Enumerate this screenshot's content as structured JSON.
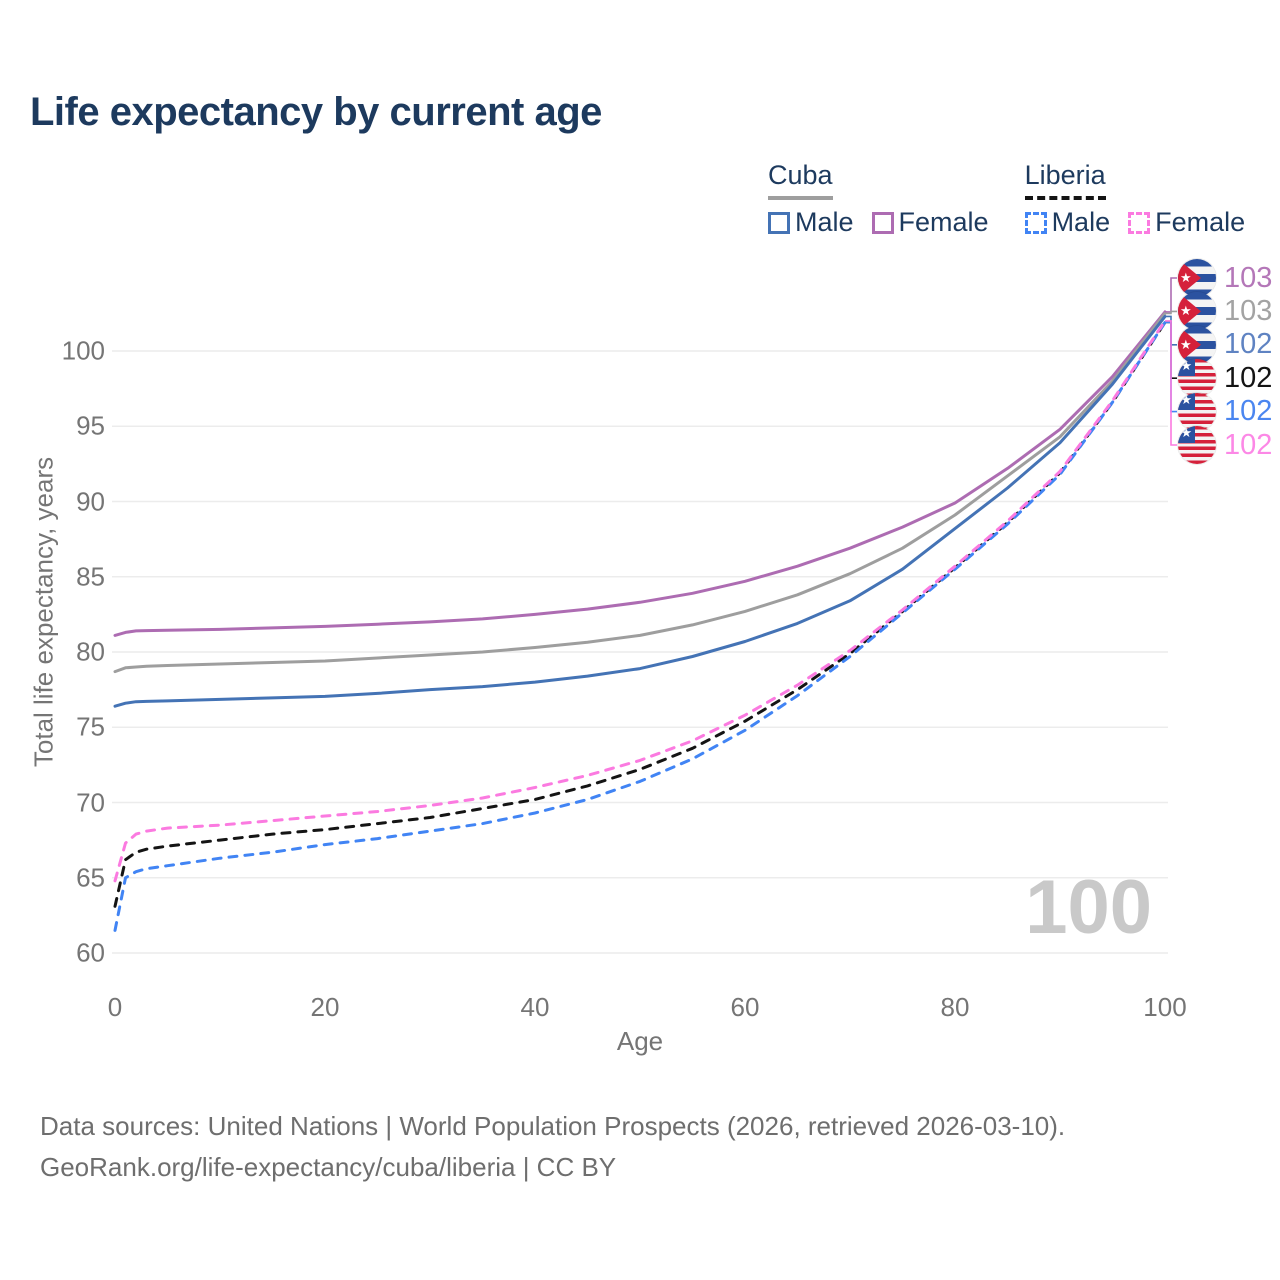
{
  "page": {
    "title": "Life expectancy by current age",
    "watermark": "100",
    "footer_line1": "Data sources: United Nations | World Population Prospects (2026, retrieved 2026-03-10).",
    "footer_line2": "GeoRank.org/life-expectancy/cuba/liberia | CC BY"
  },
  "legend": {
    "groups": [
      {
        "title": "Cuba",
        "line_style": "solid",
        "items": [
          {
            "label": "Male",
            "color": "#4473b5"
          },
          {
            "label": "Female",
            "color": "#ad6cb2"
          }
        ]
      },
      {
        "title": "Liberia",
        "line_style": "dashed",
        "items": [
          {
            "label": "Male",
            "color": "#4184f4"
          },
          {
            "label": "Female",
            "color": "#fb7ae0"
          }
        ]
      }
    ]
  },
  "chart_data": {
    "type": "line",
    "title": "Life expectancy by current age",
    "xlabel": "Age",
    "ylabel": "Total life expectancy, years",
    "xlim": [
      0,
      100
    ],
    "ylim": [
      60,
      100
    ],
    "xticks": [
      0,
      20,
      40,
      60,
      80,
      100
    ],
    "yticks": [
      60,
      65,
      70,
      75,
      80,
      85,
      90,
      95,
      100
    ],
    "grid": "horizontal",
    "legend_position": "top-right",
    "ages": [
      0,
      1,
      2,
      3,
      5,
      10,
      15,
      20,
      25,
      30,
      35,
      40,
      45,
      50,
      55,
      60,
      65,
      70,
      75,
      80,
      85,
      90,
      95,
      100
    ],
    "series": [
      {
        "name": "Cuba Female",
        "country": "Cuba",
        "sex": "Female",
        "line": "solid",
        "color": "#ad6cb2",
        "end_label": "103",
        "label_color": "#b477b8",
        "values": [
          81.1,
          81.3,
          81.4,
          81.42,
          81.45,
          81.5,
          81.6,
          81.7,
          81.85,
          82.0,
          82.2,
          82.5,
          82.85,
          83.3,
          83.9,
          84.7,
          85.7,
          86.9,
          88.3,
          89.9,
          92.2,
          94.8,
          98.3,
          102.6
        ]
      },
      {
        "name": "Cuba Both sexes",
        "country": "Cuba",
        "sex": "Both",
        "line": "solid",
        "color": "#9e9e9e",
        "end_label": "103",
        "label_color": "#a3a3a3",
        "values": [
          78.7,
          78.95,
          79.0,
          79.05,
          79.1,
          79.2,
          79.3,
          79.4,
          79.6,
          79.8,
          80.0,
          80.3,
          80.65,
          81.1,
          81.8,
          82.7,
          83.8,
          85.2,
          86.9,
          89.1,
          91.7,
          94.3,
          98.0,
          102.5
        ]
      },
      {
        "name": "Cuba Male",
        "country": "Cuba",
        "sex": "Male",
        "line": "solid",
        "color": "#4473b5",
        "end_label": "102",
        "label_color": "#5f83c2",
        "values": [
          76.4,
          76.6,
          76.7,
          76.72,
          76.75,
          76.85,
          76.95,
          77.05,
          77.25,
          77.5,
          77.7,
          78.0,
          78.4,
          78.9,
          79.7,
          80.7,
          81.9,
          83.4,
          85.5,
          88.2,
          90.9,
          93.9,
          97.8,
          102.3
        ]
      },
      {
        "name": "Liberia Both sexes",
        "country": "Liberia",
        "sex": "Both",
        "line": "dashed",
        "color": "#141414",
        "end_label": "102",
        "label_color": "#141414",
        "values": [
          63.1,
          66.2,
          66.7,
          66.9,
          67.1,
          67.5,
          67.9,
          68.2,
          68.6,
          69.0,
          69.6,
          70.2,
          71.1,
          72.2,
          73.6,
          75.4,
          77.5,
          79.9,
          82.7,
          85.6,
          88.6,
          91.9,
          96.6,
          101.9
        ]
      },
      {
        "name": "Liberia Male",
        "country": "Liberia",
        "sex": "Male",
        "line": "dashed",
        "color": "#4184f4",
        "end_label": "102",
        "label_color": "#4b86f0",
        "values": [
          61.5,
          65.0,
          65.4,
          65.6,
          65.8,
          66.3,
          66.7,
          67.2,
          67.6,
          68.1,
          68.6,
          69.3,
          70.2,
          71.4,
          72.9,
          74.8,
          77.1,
          79.7,
          82.6,
          85.5,
          88.5,
          91.8,
          96.6,
          101.9
        ]
      },
      {
        "name": "Liberia Female",
        "country": "Liberia",
        "sex": "Female",
        "line": "dashed",
        "color": "#fb7ae0",
        "end_label": "102",
        "label_color": "#fc88e6",
        "values": [
          64.8,
          67.3,
          67.9,
          68.1,
          68.3,
          68.5,
          68.8,
          69.1,
          69.4,
          69.8,
          70.3,
          71.0,
          71.8,
          72.8,
          74.1,
          75.8,
          77.8,
          80.1,
          82.8,
          85.7,
          88.7,
          92.0,
          96.7,
          102.0
        ]
      }
    ],
    "end_labels": [
      {
        "flag": "cuba",
        "value": "103",
        "color": "#b477b8",
        "series": "Cuba Female"
      },
      {
        "flag": "cuba",
        "value": "103",
        "color": "#a3a3a3",
        "series": "Cuba Both sexes"
      },
      {
        "flag": "cuba",
        "value": "102",
        "color": "#5f83c2",
        "series": "Cuba Male"
      },
      {
        "flag": "liberia",
        "value": "102",
        "color": "#141414",
        "series": "Liberia Both sexes"
      },
      {
        "flag": "liberia",
        "value": "102",
        "color": "#4b86f0",
        "series": "Liberia Male"
      },
      {
        "flag": "liberia",
        "value": "102",
        "color": "#fc88e6",
        "series": "Liberia Female"
      }
    ]
  }
}
